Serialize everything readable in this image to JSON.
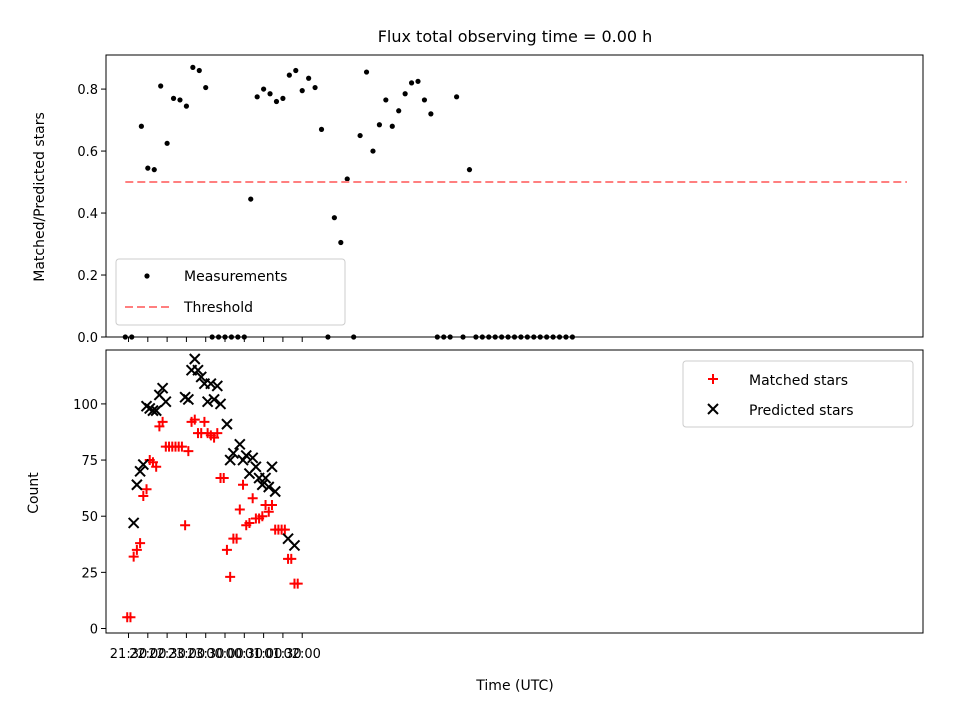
{
  "chart_data": [
    {
      "type": "scatter",
      "panel": "top",
      "title": "Flux total observing time = 0.00 h",
      "ylabel": "Matched/Predicted stars",
      "xlabel": "",
      "x_range_minutes": [
        -35,
        1235
      ],
      "ylim": [
        0,
        0.91
      ],
      "y_ticks": [
        0,
        0.2,
        0.4,
        0.6,
        0.8
      ],
      "y_tick_labels": [
        "0.0",
        "0.2",
        "0.4",
        "0.6",
        "0.8"
      ],
      "x_tick_labels_shown": false,
      "legend": {
        "position": "lower-left",
        "entries": [
          "Measurements",
          "Threshold"
        ]
      },
      "series": [
        {
          "name": "Measurements",
          "marker": "dot",
          "color": "#000000",
          "x_minutes": [
            -5,
            5,
            20,
            30,
            40,
            50,
            60,
            70,
            80,
            90,
            100,
            110,
            120,
            130,
            140,
            150,
            160,
            170,
            180,
            190,
            200,
            210,
            220,
            230,
            240,
            250,
            260,
            270,
            280,
            290,
            300,
            310,
            320,
            330,
            340,
            350,
            360,
            370,
            380,
            390,
            400,
            410,
            420,
            430,
            440,
            450,
            460,
            470,
            480,
            490,
            500,
            510,
            520,
            530,
            540,
            550,
            560,
            570,
            580,
            590,
            600,
            610,
            620,
            630,
            640,
            650,
            660,
            670,
            680,
            690
          ],
          "y": [
            0.0,
            0.0,
            0.68,
            0.545,
            0.54,
            0.81,
            0.625,
            0.77,
            0.765,
            0.745,
            0.87,
            0.86,
            0.805,
            0.0,
            0.0,
            0.0,
            0.0,
            0.0,
            0.0,
            0.445,
            0.775,
            0.8,
            0.785,
            0.76,
            0.77,
            0.845,
            0.86,
            0.795,
            0.835,
            0.805,
            0.67,
            0.0,
            0.385,
            0.305,
            0.51,
            0.0,
            0.65,
            0.855,
            0.6,
            0.685,
            0.765,
            0.68,
            0.73,
            0.785,
            0.82,
            0.825,
            0.765,
            0.72,
            0.0,
            0.0,
            0.0,
            0.775,
            0.0,
            0.54,
            0.0,
            0.0,
            0.0,
            0.0,
            0.0,
            0.0,
            0.0,
            0.0,
            0.0,
            0.0,
            0.0,
            0.0,
            0.0,
            0.0,
            0.0,
            0.0
          ]
        },
        {
          "name": "Threshold",
          "line_style": "dashed",
          "color": "#ff7f7f",
          "x_minutes": [
            -5,
            1210
          ],
          "y": [
            0.5,
            0.5
          ]
        }
      ]
    },
    {
      "type": "scatter",
      "panel": "bottom",
      "xlabel": "Time (UTC)",
      "ylabel": "Count",
      "x_range_minutes": [
        -35,
        1235
      ],
      "ylim": [
        -2,
        124
      ],
      "y_ticks": [
        0,
        25,
        50,
        75,
        100
      ],
      "y_tick_labels": [
        "0",
        "25",
        "50",
        "75",
        "100"
      ],
      "x_ticks_minutes": [
        0,
        30,
        60,
        90,
        120,
        150,
        180,
        210,
        240,
        270
      ],
      "x_tick_labels": [
        "21:30",
        "22:00",
        "22:30",
        "23:00",
        "23:30",
        "00:00",
        "00:30",
        "01:00",
        "01:30",
        "02:00"
      ],
      "legend": {
        "position": "top-right",
        "entries": [
          "Matched stars",
          "Predicted stars"
        ]
      },
      "series": [
        {
          "name": "Matched stars",
          "marker": "plus",
          "color": "#ff0000",
          "x_minutes": [
            -2,
            3,
            8,
            13,
            18,
            23,
            28,
            33,
            38,
            43,
            48,
            53,
            58,
            63,
            68,
            73,
            78,
            83,
            88,
            93,
            98,
            103,
            108,
            113,
            118,
            123,
            128,
            133,
            138,
            143,
            148,
            153,
            158,
            163,
            168,
            173,
            178,
            183,
            188,
            193,
            198,
            203,
            208,
            213,
            218,
            223,
            228,
            233,
            238,
            243,
            248,
            253,
            258,
            263
          ],
          "y": [
            5,
            5,
            32,
            35,
            38,
            59,
            62,
            75,
            74,
            72,
            90,
            92,
            81,
            81,
            81,
            81,
            81,
            81,
            46,
            79,
            92,
            93,
            87,
            87,
            92,
            87,
            86,
            85,
            87,
            67,
            67,
            35,
            23,
            40,
            40,
            53,
            64,
            46,
            47,
            58,
            49,
            49,
            50,
            55,
            52,
            55,
            44,
            44,
            44,
            44,
            31,
            31,
            20,
            20
          ]
        },
        {
          "name": "Predicted stars",
          "marker": "x",
          "color": "#000000",
          "x_minutes": [
            8,
            13,
            18,
            23,
            28,
            33,
            38,
            43,
            48,
            53,
            58,
            88,
            93,
            98,
            103,
            108,
            113,
            118,
            123,
            128,
            133,
            138,
            143,
            153,
            158,
            163,
            173,
            178,
            183,
            188,
            193,
            198,
            203,
            208,
            213,
            218,
            223,
            228,
            248,
            258
          ],
          "y": [
            47,
            64,
            70,
            73,
            99,
            98,
            97,
            97,
            104,
            107,
            101,
            103,
            102,
            115,
            120,
            115,
            112,
            109,
            101,
            109,
            102,
            108,
            100,
            91,
            75,
            78,
            82,
            75,
            77,
            69,
            76,
            72,
            67,
            64,
            67,
            63,
            72,
            61,
            40,
            37
          ]
        }
      ]
    }
  ]
}
